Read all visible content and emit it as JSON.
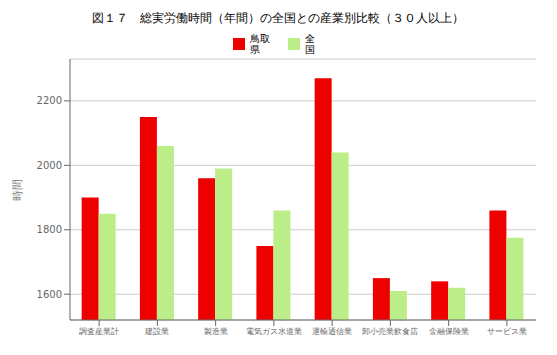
{
  "chart_data": {
    "type": "bar",
    "title": "図１７　総実労働時間（年間）の全国との産業別比較（３０人以上）",
    "ylabel": "時間",
    "categories": [
      "調査産業計",
      "建設業",
      "製造業",
      "電気ガス水道業",
      "運輸通信業",
      "卸小売業飲食店",
      "金融保険業",
      "サービス業"
    ],
    "series": [
      {
        "name": "鳥取\n県",
        "color": "#ee0000",
        "values": [
          1900,
          2150,
          1960,
          1750,
          2270,
          1650,
          1640,
          1860
        ]
      },
      {
        "name": "全\n国",
        "color": "#bbee88",
        "values": [
          1850,
          2060,
          1990,
          1860,
          2040,
          1610,
          1620,
          1775
        ]
      }
    ],
    "ylim": [
      1520,
      2330
    ],
    "yticks": [
      1600,
      1800,
      2000,
      2200
    ],
    "grid": true,
    "legend": "top"
  }
}
